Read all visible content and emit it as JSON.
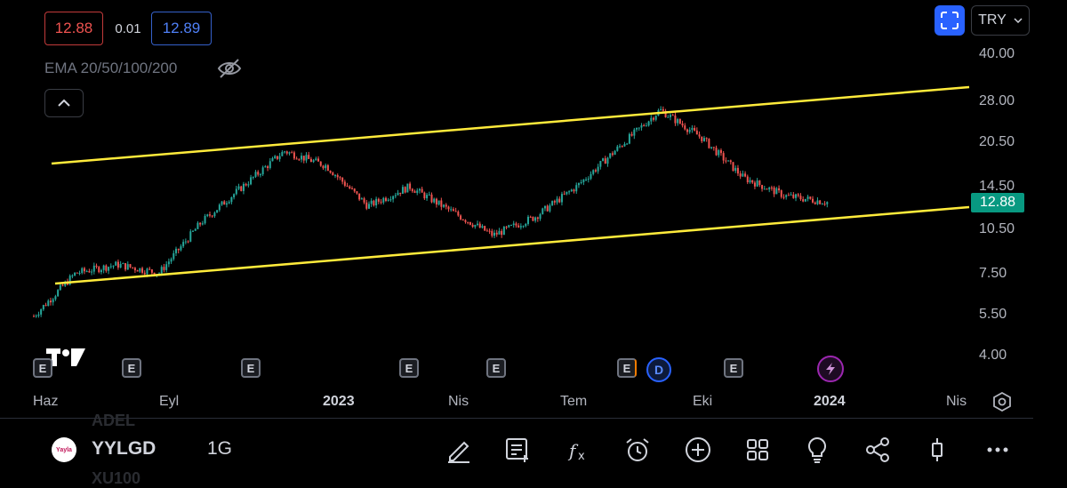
{
  "quote": {
    "bid": "12.88",
    "spread": "0.01",
    "ask": "12.89"
  },
  "indicator": {
    "label": "EMA 20/50/100/200",
    "visibility_icon": "eye-off-icon"
  },
  "header": {
    "currency": "TRY",
    "expand_icon": "fullscreen-icon"
  },
  "price_axis": {
    "labels": [
      "40.00",
      "28.00",
      "20.50",
      "14.50",
      "10.50",
      "7.50",
      "5.50",
      "4.00"
    ],
    "last_price": "12.88",
    "last_price_color": "#089981"
  },
  "time_axis": {
    "labels": [
      "Haz",
      "Eyl",
      "2023",
      "Nis",
      "Tem",
      "Eki",
      "2024",
      "Nis"
    ]
  },
  "events": {
    "earnings_label": "E",
    "dividend_label": "D"
  },
  "symbol_bar": {
    "ghost_above": "ADEL",
    "symbol": "YYLGD",
    "interval": "1G",
    "ghost_below": "XU100",
    "logo_text": "Yayla"
  },
  "toolbar": {
    "icons": [
      "draw-icon",
      "note-icon",
      "indicators-icon",
      "alert-icon",
      "add-icon",
      "layout-icon",
      "ideas-icon",
      "share-icon",
      "chart-type-icon",
      "more-icon"
    ]
  },
  "colors": {
    "up": "#26a69a",
    "down": "#ef5350",
    "trendline": "#ffeb3b",
    "accent": "#2962ff"
  },
  "chart_data": {
    "type": "candlestick",
    "symbol": "YYLGD",
    "interval": "1G",
    "x": [
      "2022-06",
      "2022-07",
      "2022-08",
      "2022-09",
      "2022-10",
      "2022-11",
      "2022-12",
      "2023-01",
      "2023-02",
      "2023-03",
      "2023-04",
      "2023-05",
      "2023-06",
      "2023-07",
      "2023-08",
      "2023-09",
      "2023-10",
      "2023-11",
      "2023-12",
      "2024-01"
    ],
    "close_approx": [
      5.4,
      7.5,
      8.0,
      7.5,
      11.0,
      14.5,
      19.0,
      17.0,
      12.5,
      14.5,
      12.0,
      10.0,
      11.5,
      14.5,
      19.5,
      26.0,
      21.0,
      15.5,
      13.5,
      12.88
    ],
    "log_scale": true,
    "ylim": [
      4.0,
      40.0
    ],
    "channel": {
      "upper": [
        {
          "x": "2022-06",
          "y": 17.5
        },
        {
          "x": "2024-02",
          "y": 30.0
        }
      ],
      "lower": [
        {
          "x": "2022-06",
          "y": 6.9
        },
        {
          "x": "2024-02",
          "y": 12.3
        }
      ]
    },
    "last_price": 12.88
  }
}
